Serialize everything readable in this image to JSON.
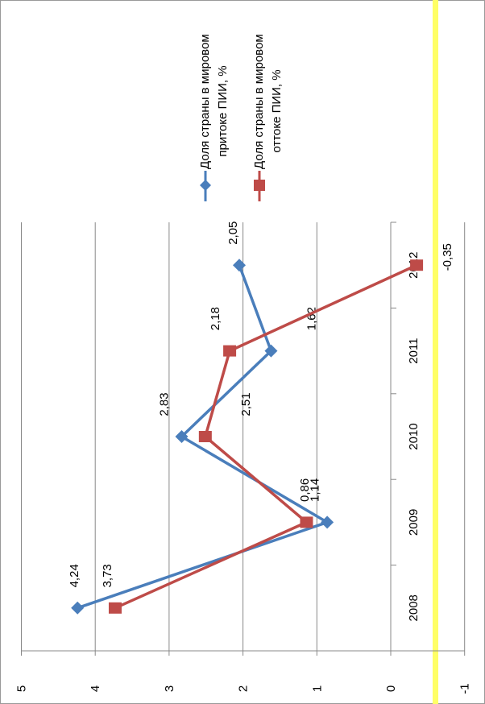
{
  "chart_data": {
    "type": "line",
    "orientation": "rotated-90-ccw",
    "categories": [
      "2008",
      "2009",
      "2010",
      "2011",
      "2012"
    ],
    "ylim": [
      -1,
      5
    ],
    "yticks": [
      "5",
      "4",
      "3",
      "2",
      "1",
      "0",
      "-1"
    ],
    "grid": true,
    "legend_position": "right",
    "series": [
      {
        "name": "Доля страны в мировом притоке ПИИ, %",
        "name_lines": [
          "Доля страны в мировом",
          "притоке ПИИ, %"
        ],
        "color": "#4a7ebb",
        "marker": "diamond",
        "values": [
          4.24,
          0.86,
          2.83,
          1.62,
          2.05
        ],
        "labels": [
          "4,24",
          "0,86",
          "2,83",
          "1,62",
          "2,05"
        ]
      },
      {
        "name": "Доля страны в мировом оттоке ПИИ, %",
        "name_lines": [
          "Доля страны в мировом",
          "оттоке ПИИ, %"
        ],
        "color": "#be4b48",
        "marker": "square",
        "values": [
          3.73,
          1.14,
          2.51,
          2.18,
          -0.35
        ],
        "labels": [
          "3,73",
          "1,14",
          "2,51",
          "2,18",
          "-0,35"
        ]
      }
    ],
    "highlight_color": "#ffff66"
  }
}
